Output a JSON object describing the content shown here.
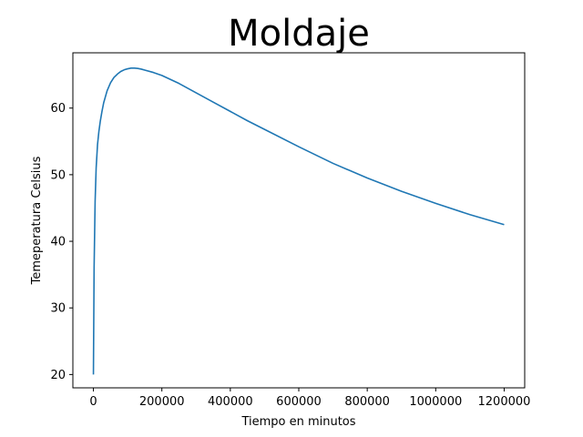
{
  "chart_data": {
    "type": "line",
    "title": "Moldaje",
    "xlabel": "Tiempo en minutos",
    "ylabel": "Temeperatura Celsius",
    "xlim": [
      -60000,
      1260000
    ],
    "ylim": [
      18,
      68.3
    ],
    "xticks": [
      0,
      200000,
      400000,
      600000,
      800000,
      1000000,
      1200000
    ],
    "yticks": [
      20,
      30,
      40,
      50,
      60
    ],
    "grid": false,
    "series": [
      {
        "name": "Temperatura",
        "color": "#1f77b4",
        "x": [
          0,
          2000,
          5000,
          8000,
          12000,
          16000,
          20000,
          25000,
          30000,
          40000,
          50000,
          60000,
          70000,
          80000,
          90000,
          100000,
          110000,
          120000,
          130000,
          140000,
          150000,
          175000,
          200000,
          250000,
          300000,
          350000,
          400000,
          450000,
          500000,
          600000,
          700000,
          800000,
          900000,
          1000000,
          1100000,
          1200000
        ],
        "y": [
          20,
          36,
          46,
          51,
          54.5,
          56.5,
          58,
          59.5,
          60.8,
          62.6,
          63.8,
          64.6,
          65.1,
          65.5,
          65.75,
          65.9,
          66.0,
          66.0,
          65.95,
          65.85,
          65.7,
          65.35,
          64.9,
          63.7,
          62.3,
          60.9,
          59.5,
          58.1,
          56.8,
          54.2,
          51.7,
          49.5,
          47.5,
          45.7,
          44.0,
          42.5
        ]
      }
    ]
  }
}
